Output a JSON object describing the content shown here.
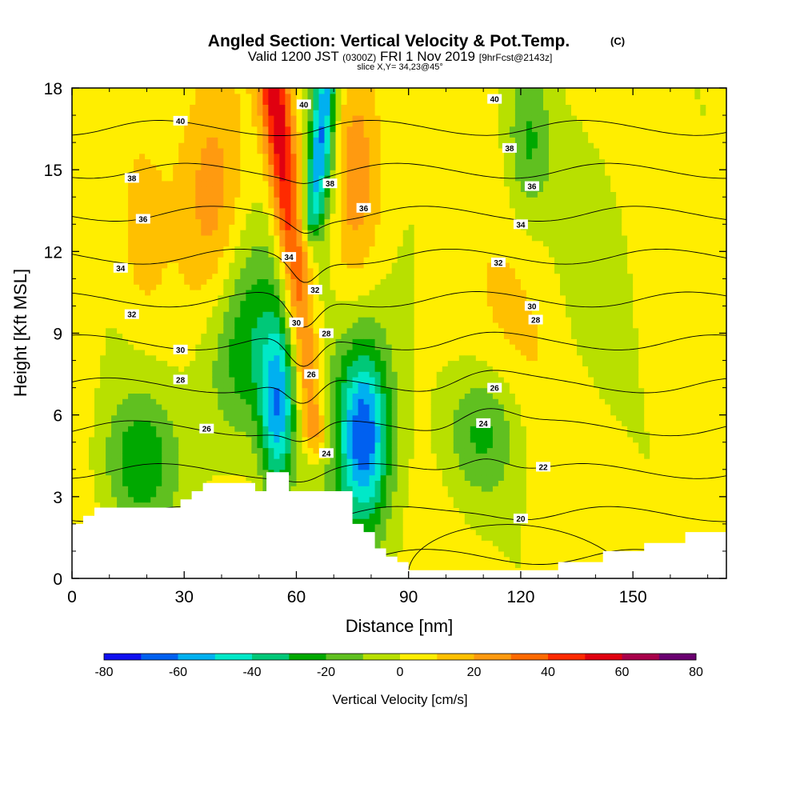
{
  "chart_data": {
    "type": "heatmap",
    "title": "Angled Section: Vertical Velocity & Pot.Temp.",
    "title_units": "(C)",
    "subtitle_main": "Valid 1200 JST",
    "subtitle_utc": "(0300Z)",
    "subtitle_date": "FRI 1 Nov 2019",
    "subtitle_fcst": "[9hrFcst@2143z]",
    "slice_label": "slice X,Y= 34,23@45°",
    "xlabel": "Distance [nm]",
    "ylabel": "Height [Kft MSL]",
    "xlim": [
      0,
      175
    ],
    "ylim": [
      0,
      18
    ],
    "x_ticks": [
      0,
      30,
      60,
      90,
      120,
      150
    ],
    "y_ticks": [
      0,
      3,
      6,
      9,
      12,
      15,
      18
    ],
    "colorbar": {
      "label": "Vertical Velocity [cm/s]",
      "ticks": [
        -80,
        -60,
        -40,
        -20,
        0,
        20,
        40,
        60,
        80
      ],
      "levels": [
        -80,
        -70,
        -60,
        -50,
        -40,
        -30,
        -20,
        -10,
        0,
        10,
        20,
        30,
        40,
        50,
        60,
        70,
        80
      ],
      "colors": [
        "#1010f0",
        "#0060f0",
        "#00b0f0",
        "#00e8c8",
        "#00c878",
        "#00a800",
        "#60c020",
        "#b8e000",
        "#ffee00",
        "#ffc000",
        "#ff9a10",
        "#ff6a00",
        "#ff2a00",
        "#e00010",
        "#a8004a",
        "#6a0070"
      ]
    },
    "vertical_velocity_features": [
      {
        "x": 18,
        "y": 4.2,
        "sx": 7,
        "sy": 1.8,
        "value": -30
      },
      {
        "x": 44,
        "y": 7.4,
        "sx": 8,
        "sy": 2.2,
        "value": -15
      },
      {
        "x": 48,
        "y": 9.5,
        "sx": 9,
        "sy": 2.6,
        "value": -22
      },
      {
        "x": 55,
        "y": 6.0,
        "sx": 3.2,
        "sy": 2.2,
        "value": -50
      },
      {
        "x": 67,
        "y": 16,
        "sx": 3,
        "sy": 2.5,
        "value": -35
      },
      {
        "x": 78,
        "y": 5.2,
        "sx": 4.5,
        "sy": 2.2,
        "value": -55
      },
      {
        "x": 78,
        "y": 6.2,
        "sx": 8,
        "sy": 3.5,
        "value": -20
      },
      {
        "x": 110,
        "y": 5.4,
        "sx": 7,
        "sy": 1.7,
        "value": -25
      },
      {
        "x": 122,
        "y": 16,
        "sx": 4,
        "sy": 2,
        "value": -22
      },
      {
        "x": 137,
        "y": 11,
        "sx": 9,
        "sy": 3.5,
        "value": -10
      },
      {
        "x": 38,
        "y": 14,
        "sx": 6,
        "sy": 3.5,
        "value": 25
      },
      {
        "x": 76,
        "y": 15,
        "sx": 5,
        "sy": 3,
        "value": 25
      },
      {
        "x": 19,
        "y": 12.5,
        "sx": 4,
        "sy": 2,
        "value": 12
      },
      {
        "x": 120,
        "y": 9,
        "sx": 16,
        "sy": 3,
        "value": 8
      }
    ],
    "updraft_ridge": {
      "x_base": 65,
      "y_base": 5,
      "x_top": 54,
      "y_top": 18,
      "width_nm": 2.8,
      "value_base": 30,
      "value_top": 55
    },
    "downdraft_ridge": {
      "x_base": 64,
      "y_base": 13,
      "x_top": 68,
      "y_top": 18,
      "width_nm": 2.0,
      "value": -35
    },
    "potential_temperature": {
      "levels": [
        20,
        22,
        24,
        26,
        28,
        30,
        32,
        34,
        36,
        38,
        40
      ],
      "labels": [
        {
          "text": "40",
          "x": 29,
          "y": 16.8
        },
        {
          "text": "40",
          "x": 62,
          "y": 17.4
        },
        {
          "text": "40",
          "x": 113,
          "y": 17.6
        },
        {
          "text": "38",
          "x": 16,
          "y": 14.7
        },
        {
          "text": "38",
          "x": 69,
          "y": 14.5
        },
        {
          "text": "38",
          "x": 117,
          "y": 15.8
        },
        {
          "text": "36",
          "x": 19,
          "y": 13.2
        },
        {
          "text": "36",
          "x": 78,
          "y": 13.6
        },
        {
          "text": "36",
          "x": 123,
          "y": 14.4
        },
        {
          "text": "34",
          "x": 13,
          "y": 11.4
        },
        {
          "text": "34",
          "x": 58,
          "y": 11.8
        },
        {
          "text": "34",
          "x": 120,
          "y": 13.0
        },
        {
          "text": "32",
          "x": 16,
          "y": 9.7
        },
        {
          "text": "32",
          "x": 65,
          "y": 10.6
        },
        {
          "text": "32",
          "x": 114,
          "y": 11.6
        },
        {
          "text": "30",
          "x": 29,
          "y": 8.4
        },
        {
          "text": "30",
          "x": 60,
          "y": 9.4
        },
        {
          "text": "30",
          "x": 123,
          "y": 10.0
        },
        {
          "text": "28",
          "x": 29,
          "y": 7.3
        },
        {
          "text": "28",
          "x": 68,
          "y": 9.0
        },
        {
          "text": "28",
          "x": 124,
          "y": 9.5
        },
        {
          "text": "26",
          "x": 36,
          "y": 5.5
        },
        {
          "text": "26",
          "x": 64,
          "y": 7.5
        },
        {
          "text": "26",
          "x": 113,
          "y": 7.0
        },
        {
          "text": "24",
          "x": 68,
          "y": 4.6
        },
        {
          "text": "24",
          "x": 110,
          "y": 5.7
        },
        {
          "text": "22",
          "x": 126,
          "y": 4.1
        },
        {
          "text": "20",
          "x": 120,
          "y": 2.2
        }
      ]
    },
    "terrain": [
      [
        0,
        2.0
      ],
      [
        3,
        2.0
      ],
      [
        3,
        2.3
      ],
      [
        6,
        2.3
      ],
      [
        6,
        2.6
      ],
      [
        29,
        2.6
      ],
      [
        29,
        2.9
      ],
      [
        32,
        2.9
      ],
      [
        32,
        3.2
      ],
      [
        35,
        3.2
      ],
      [
        35,
        3.5
      ],
      [
        49,
        3.5
      ],
      [
        49,
        3.2
      ],
      [
        52,
        3.2
      ],
      [
        52,
        3.9
      ],
      [
        58,
        3.9
      ],
      [
        58,
        3.2
      ],
      [
        75,
        3.2
      ],
      [
        75,
        2.0
      ],
      [
        78,
        2.0
      ],
      [
        78,
        1.7
      ],
      [
        81,
        1.7
      ],
      [
        81,
        1.1
      ],
      [
        84,
        1.1
      ],
      [
        84,
        0.8
      ],
      [
        87,
        0.8
      ],
      [
        87,
        0.6
      ],
      [
        90,
        0.6
      ],
      [
        90,
        0.3
      ],
      [
        130,
        0.3
      ],
      [
        130,
        0.6
      ],
      [
        142,
        0.6
      ],
      [
        142,
        1.0
      ],
      [
        153,
        1.0
      ],
      [
        153,
        1.3
      ],
      [
        164,
        1.3
      ],
      [
        164,
        1.7
      ],
      [
        175,
        1.7
      ]
    ]
  }
}
